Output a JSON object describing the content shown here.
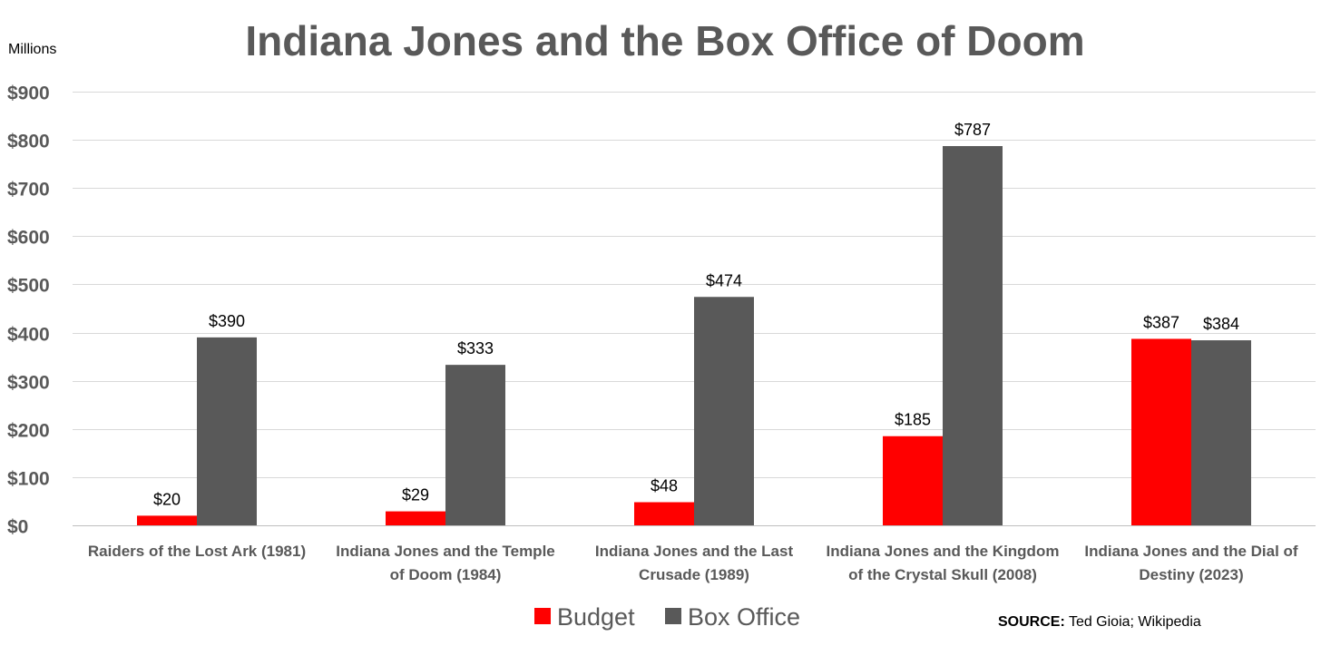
{
  "chart_data": {
    "type": "bar",
    "title": "Indiana Jones and the Box Office of Doom",
    "unit_label": "Millions",
    "categories": [
      [
        "Raiders of the Lost Ark (1981)"
      ],
      [
        "Indiana Jones and the Temple",
        "of Doom (1984)"
      ],
      [
        "Indiana Jones and the Last",
        "Crusade (1989)"
      ],
      [
        "Indiana Jones and the Kingdom",
        "of the Crystal Skull (2008)"
      ],
      [
        "Indiana Jones and the Dial of",
        "Destiny (2023)"
      ]
    ],
    "series": [
      {
        "name": "Budget",
        "color": "#ff0000",
        "values": [
          20,
          29,
          48,
          185,
          387
        ],
        "labels": [
          "$20",
          "$29",
          "$48",
          "$185",
          "$387"
        ]
      },
      {
        "name": "Box Office",
        "color": "#595959",
        "values": [
          390,
          333,
          474,
          787,
          384
        ],
        "labels": [
          "$390",
          "$333",
          "$474",
          "$787",
          "$384"
        ]
      }
    ],
    "yticks": [
      0,
      100,
      200,
      300,
      400,
      500,
      600,
      700,
      800,
      900
    ],
    "ytick_labels": [
      "$0",
      "$100",
      "$200",
      "$300",
      "$400",
      "$500",
      "$600",
      "$700",
      "$800",
      "$900"
    ],
    "ylim": [
      0,
      900
    ],
    "grid": true,
    "legend_position": "bottom-center",
    "source_label": "SOURCE:",
    "source_text": " Ted Gioia; Wikipedia"
  }
}
